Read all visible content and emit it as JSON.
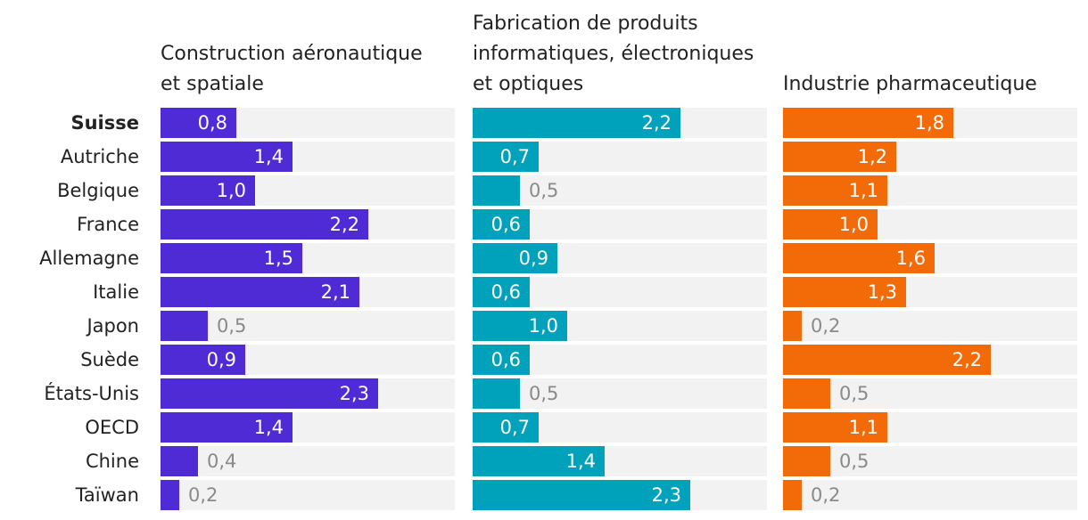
{
  "chart_data": {
    "type": "bar",
    "orientation": "horizontal",
    "categories": [
      "Suisse",
      "Autriche",
      "Belgique",
      "France",
      "Allemagne",
      "Italie",
      "Japon",
      "Suède",
      "États-Unis",
      "OECD",
      "Chine",
      "Taïwan"
    ],
    "highlight_category": "Suisse",
    "xlim": [
      0,
      3
    ],
    "series": [
      {
        "name": "Construction aéronautique\net spatiale",
        "color": "#4f2bd6",
        "values": [
          0.8,
          1.4,
          1.0,
          2.2,
          1.5,
          2.1,
          0.5,
          0.9,
          2.3,
          1.4,
          0.4,
          0.2
        ],
        "labels": [
          "0,8",
          "1,4",
          "1,0",
          "2,2",
          "1,5",
          "2,1",
          "0,5",
          "0,9",
          "2,3",
          "1,4",
          "0,4",
          "0,2"
        ]
      },
      {
        "name": "Fabrication de produits\ninformatiques, électroniques\net optiques",
        "color": "#00a2bb",
        "values": [
          2.2,
          0.7,
          0.5,
          0.6,
          0.9,
          0.6,
          1.0,
          0.6,
          0.5,
          0.7,
          1.4,
          2.3
        ],
        "labels": [
          "2,2",
          "0,7",
          "0,5",
          "0,6",
          "0,9",
          "0,6",
          "1,0",
          "0,6",
          "0,5",
          "0,7",
          "1,4",
          "2,3"
        ]
      },
      {
        "name": "Industrie pharmaceutique",
        "color": "#f36a08",
        "values": [
          1.8,
          1.2,
          1.1,
          1.0,
          1.6,
          1.3,
          0.2,
          2.2,
          0.5,
          1.1,
          0.5,
          0.2
        ],
        "labels": [
          "1,8",
          "1,2",
          "1,1",
          "1,0",
          "1,6",
          "1,3",
          "0,2",
          "2,2",
          "0,5",
          "1,1",
          "0,5",
          "0,2"
        ]
      }
    ]
  }
}
